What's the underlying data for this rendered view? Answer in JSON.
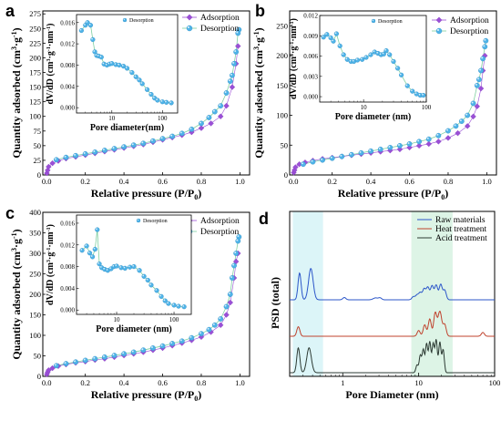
{
  "colors": {
    "adsorption": "#9b4fd6",
    "desorption": "#4fb3e8",
    "desorption_line": "#7fcfa0",
    "raw": "#2b56c9",
    "heat": "#c0432e",
    "acid": "#2d3b34",
    "shade_cyan": "#d8f4f7",
    "shade_green": "#d9f3e3"
  },
  "chart_data": [
    {
      "id": "a",
      "type": "scatter",
      "panel_label": "a",
      "xlabel": "Relative pressure (P/P0)",
      "ylabel": "Quantity adsorbed (cm3·g-1)",
      "xlim": [
        -0.02,
        1.05
      ],
      "ylim": [
        0,
        280
      ],
      "xticks": [
        "0.0",
        "0.2",
        "0.4",
        "0.6",
        "0.8",
        "1.0"
      ],
      "yticks": [
        "0",
        "25",
        "50",
        "75",
        "100",
        "125",
        "150",
        "175",
        "200",
        "225",
        "250",
        "275"
      ],
      "legend": [
        "Adsorption",
        "Desorption"
      ],
      "series": [
        {
          "name": "Adsorption",
          "x": [
            0.001,
            0.005,
            0.01,
            0.03,
            0.06,
            0.1,
            0.15,
            0.2,
            0.25,
            0.3,
            0.35,
            0.4,
            0.45,
            0.5,
            0.55,
            0.6,
            0.65,
            0.7,
            0.75,
            0.8,
            0.85,
            0.9,
            0.93,
            0.96,
            0.98,
            0.99
          ],
          "y": [
            3,
            8,
            14,
            20,
            24,
            28,
            31,
            34,
            37,
            40,
            43,
            46,
            49,
            52,
            56,
            60,
            64,
            68,
            73,
            80,
            88,
            100,
            118,
            150,
            190,
            220
          ]
        },
        {
          "name": "Desorption",
          "x": [
            0.995,
            0.99,
            0.98,
            0.97,
            0.96,
            0.95,
            0.93,
            0.9,
            0.87,
            0.84,
            0.8,
            0.75,
            0.7,
            0.65,
            0.6,
            0.55,
            0.5,
            0.45,
            0.4,
            0.35,
            0.3,
            0.25,
            0.2,
            0.15,
            0.1,
            0.05
          ],
          "y": [
            248,
            242,
            210,
            190,
            170,
            160,
            140,
            118,
            108,
            98,
            88,
            78,
            71,
            66,
            62,
            58,
            54,
            51,
            48,
            45,
            42,
            39,
            36,
            33,
            30,
            26
          ]
        }
      ],
      "inset": {
        "xlabel": "Pore diameter(nm)",
        "ylabel": "dV/dD (cm3·g-1·nm-1)",
        "xlim": [
          2,
          200
        ],
        "ylim": [
          -0.001,
          0.0175
        ],
        "xticks": [
          "10",
          "100"
        ],
        "yticks": [
          "0.000",
          "0.004",
          "0.008",
          "0.012",
          "0.016"
        ],
        "legend": "Desorption",
        "x": [
          2.5,
          3,
          3.3,
          3.8,
          4.2,
          4.6,
          5,
          5.5,
          6.2,
          7,
          8,
          9,
          10,
          12,
          14,
          17,
          20,
          25,
          30,
          35,
          40,
          50,
          60,
          70,
          80,
          100,
          120,
          150
        ],
        "y": [
          0.0145,
          0.0155,
          0.016,
          0.0155,
          0.0128,
          0.0105,
          0.0098,
          0.0097,
          0.0095,
          0.0082,
          0.008,
          0.0082,
          0.0083,
          0.0081,
          0.008,
          0.0078,
          0.0074,
          0.0066,
          0.0058,
          0.0052,
          0.0045,
          0.0034,
          0.0025,
          0.0018,
          0.0014,
          0.0011,
          0.001,
          0.0009
        ]
      }
    },
    {
      "id": "b",
      "type": "scatter",
      "panel_label": "b",
      "xlabel": "Relative pressure (P/P0)",
      "ylabel": "Quantity adsorbed (cm3·g-1)",
      "xlim": [
        -0.02,
        1.05
      ],
      "ylim": [
        0,
        275
      ],
      "xticks": [
        "0.0",
        "0.2",
        "0.4",
        "0.6",
        "0.8",
        "1.0"
      ],
      "yticks": [
        "0",
        "50",
        "100",
        "150",
        "200",
        "250"
      ],
      "legend": [
        "Adsorption",
        "Desorption"
      ],
      "series": [
        {
          "name": "Adsorption",
          "x": [
            0.001,
            0.005,
            0.01,
            0.03,
            0.06,
            0.1,
            0.15,
            0.2,
            0.25,
            0.3,
            0.35,
            0.4,
            0.45,
            0.5,
            0.55,
            0.6,
            0.65,
            0.7,
            0.75,
            0.8,
            0.85,
            0.9,
            0.93,
            0.95,
            0.97,
            0.98,
            0.99
          ],
          "y": [
            4,
            8,
            13,
            18,
            21,
            24,
            27,
            29,
            31,
            33,
            35,
            37,
            39,
            41,
            43,
            46,
            49,
            52,
            56,
            62,
            70,
            82,
            98,
            115,
            145,
            175,
            200
          ]
        },
        {
          "name": "Desorption",
          "x": [
            0.995,
            0.99,
            0.98,
            0.97,
            0.96,
            0.95,
            0.93,
            0.9,
            0.87,
            0.84,
            0.8,
            0.75,
            0.7,
            0.65,
            0.6,
            0.55,
            0.5,
            0.45,
            0.4,
            0.35,
            0.3,
            0.25,
            0.2,
            0.15,
            0.1,
            0.05
          ],
          "y": [
            225,
            215,
            195,
            175,
            160,
            150,
            120,
            100,
            90,
            82,
            74,
            66,
            60,
            56,
            52,
            49,
            46,
            43,
            40,
            37,
            34,
            31,
            28,
            25,
            22,
            18
          ]
        }
      ],
      "inset": {
        "xlabel": "Pore diameter (nm)",
        "ylabel": "dV/dD (cm3·g-1·nm-1)",
        "xlim": [
          2,
          100
        ],
        "ylim": [
          -0.0008,
          0.012
        ],
        "xticks": [
          "10",
          "100"
        ],
        "yticks": [
          "0.000",
          "0.003",
          "0.006",
          "0.009",
          "0.012"
        ],
        "legend": "Desorption",
        "x": [
          2.3,
          2.6,
          3,
          3.3,
          3.7,
          4.2,
          4.8,
          5.5,
          6.3,
          7,
          8,
          9.5,
          11,
          13,
          15,
          17,
          19,
          21,
          23,
          26,
          30,
          35,
          40,
          50,
          60,
          70,
          80,
          90
        ],
        "y": [
          0.0088,
          0.0092,
          0.0087,
          0.0082,
          0.0093,
          0.0075,
          0.0062,
          0.0055,
          0.0052,
          0.0052,
          0.0054,
          0.0055,
          0.0058,
          0.0062,
          0.0066,
          0.0064,
          0.0062,
          0.0063,
          0.0068,
          0.0062,
          0.0052,
          0.0042,
          0.0032,
          0.0016,
          0.0008,
          0.0004,
          0.0002,
          0.0002
        ]
      }
    },
    {
      "id": "c",
      "type": "scatter",
      "panel_label": "c",
      "xlabel": "Relative pressure (P/P0)",
      "ylabel": "Quantity adsorbed (cm3·g-1)",
      "xlim": [
        -0.02,
        1.05
      ],
      "ylim": [
        0,
        400
      ],
      "xticks": [
        "0.0",
        "0.2",
        "0.4",
        "0.6",
        "0.8",
        "1.0"
      ],
      "yticks": [
        "0",
        "50",
        "100",
        "150",
        "200",
        "250",
        "300",
        "350",
        "400"
      ],
      "legend": [
        "Adsorption",
        "Desorption"
      ],
      "series": [
        {
          "name": "Adsorption",
          "x": [
            0.001,
            0.005,
            0.01,
            0.03,
            0.06,
            0.1,
            0.15,
            0.2,
            0.25,
            0.3,
            0.35,
            0.4,
            0.45,
            0.5,
            0.55,
            0.6,
            0.65,
            0.7,
            0.75,
            0.8,
            0.85,
            0.9,
            0.93,
            0.95,
            0.97,
            0.98,
            0.99
          ],
          "y": [
            5,
            10,
            15,
            20,
            25,
            29,
            33,
            36,
            40,
            43,
            47,
            51,
            55,
            59,
            64,
            69,
            75,
            81,
            88,
            96,
            108,
            125,
            150,
            180,
            240,
            280,
            300
          ]
        },
        {
          "name": "Desorption",
          "x": [
            0.995,
            0.99,
            0.98,
            0.97,
            0.96,
            0.95,
            0.93,
            0.9,
            0.87,
            0.84,
            0.8,
            0.75,
            0.7,
            0.65,
            0.6,
            0.55,
            0.5,
            0.45,
            0.4,
            0.35,
            0.3,
            0.25,
            0.2,
            0.15,
            0.1,
            0.05
          ],
          "y": [
            340,
            330,
            300,
            270,
            240,
            200,
            170,
            140,
            125,
            114,
            104,
            94,
            86,
            80,
            74,
            69,
            64,
            59,
            55,
            51,
            47,
            43,
            39,
            35,
            31,
            26
          ]
        }
      ],
      "inset": {
        "xlabel": "Pore diameter (nm)",
        "ylabel": "dV/dD (cm3·g-1·nm-1)",
        "xlim": [
          2,
          200
        ],
        "ylim": [
          -0.0008,
          0.0175
        ],
        "xticks": [
          "10",
          "100"
        ],
        "yticks": [
          "0.000",
          "0.004",
          "0.008",
          "0.012",
          "0.016"
        ],
        "legend": "Desorption",
        "x": [
          2.5,
          3,
          3.4,
          3.8,
          4.2,
          4.6,
          5,
          5.5,
          6.2,
          7,
          8,
          9,
          10,
          12,
          14,
          17,
          20,
          25,
          30,
          35,
          40,
          50,
          60,
          70,
          80,
          100,
          120,
          150
        ],
        "y": [
          0.011,
          0.0118,
          0.0105,
          0.0098,
          0.0112,
          0.0148,
          0.0085,
          0.0078,
          0.0075,
          0.0073,
          0.0076,
          0.008,
          0.0081,
          0.0078,
          0.0077,
          0.0079,
          0.008,
          0.0073,
          0.0062,
          0.0055,
          0.0046,
          0.0036,
          0.0025,
          0.0017,
          0.0012,
          0.0009,
          0.0007,
          0.0006
        ]
      }
    },
    {
      "id": "d",
      "type": "line",
      "panel_label": "d",
      "xlabel": "Pore Diameter (nm)",
      "ylabel": "PSD (total)",
      "xscale": "log",
      "xlim": [
        0.2,
        100
      ],
      "xticks": [
        "1",
        "10",
        "100"
      ],
      "legend": [
        "Raw materials",
        "Heat treatment",
        "Acid treatment"
      ],
      "shaded_ranges": [
        [
          0.22,
          0.55
        ],
        [
          8,
          28
        ]
      ],
      "series": [
        {
          "name": "Raw materials",
          "offset": 2.0,
          "peaks": [
            [
              0.27,
              0.7,
              0.02
            ],
            [
              0.38,
              0.82,
              0.03
            ],
            [
              1.05,
              0.06,
              0.02
            ],
            [
              2.7,
              0.05,
              0.03
            ],
            [
              3.1,
              0.05,
              0.02
            ],
            [
              8.5,
              0.08,
              0.02
            ],
            [
              9.5,
              0.12,
              0.02
            ],
            [
              10.5,
              0.18,
              0.02
            ],
            [
              11.8,
              0.28,
              0.02
            ],
            [
              13.2,
              0.32,
              0.02
            ],
            [
              15,
              0.36,
              0.02
            ],
            [
              17,
              0.38,
              0.02
            ],
            [
              19.5,
              0.4,
              0.02
            ],
            [
              22,
              0.25,
              0.02
            ]
          ]
        },
        {
          "name": "Heat treatment",
          "offset": 1.0,
          "peaks": [
            [
              0.26,
              0.25,
              0.02
            ],
            [
              10,
              0.15,
              0.02
            ],
            [
              12,
              0.3,
              0.02
            ],
            [
              14,
              0.45,
              0.02
            ],
            [
              16.5,
              0.6,
              0.02
            ],
            [
              19,
              0.65,
              0.025
            ],
            [
              22,
              0.3,
              0.02
            ],
            [
              70,
              0.1,
              0.02
            ]
          ]
        },
        {
          "name": "Acid treatment",
          "offset": 0.0,
          "peaks": [
            [
              0.26,
              0.65,
              0.02
            ],
            [
              0.36,
              0.65,
              0.03
            ],
            [
              9.5,
              0.2,
              0.015
            ],
            [
              10.5,
              0.45,
              0.015
            ],
            [
              11.5,
              0.6,
              0.015
            ],
            [
              12.7,
              0.75,
              0.015
            ],
            [
              14,
              0.8,
              0.015
            ],
            [
              15.5,
              0.75,
              0.015
            ],
            [
              17,
              0.85,
              0.015
            ],
            [
              19,
              0.8,
              0.015
            ],
            [
              21,
              0.6,
              0.015
            ]
          ]
        }
      ]
    }
  ]
}
